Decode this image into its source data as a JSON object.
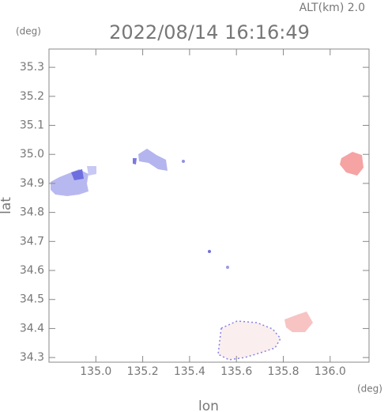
{
  "chart_data": {
    "type": "map",
    "title": "2022/08/14 16:16:49",
    "subtitle": "ALT(km) 2.0",
    "x_label": "lon",
    "y_label": "lat",
    "x_unit": "(deg)",
    "y_unit": "(deg)",
    "xlim": [
      134.8,
      136.166
    ],
    "ylim": [
      34.284,
      35.363
    ],
    "xticks": [
      {
        "value": 135,
        "label": "135.0"
      },
      135.2,
      135.4,
      135.6,
      135.8,
      {
        "value": 136,
        "label": "136.0"
      }
    ],
    "yticks": [
      34.3,
      34.4,
      34.5,
      34.6,
      34.7,
      34.8,
      34.9,
      {
        "value": 35,
        "label": "35.0"
      },
      35.1,
      35.2,
      35.3
    ]
  }
}
